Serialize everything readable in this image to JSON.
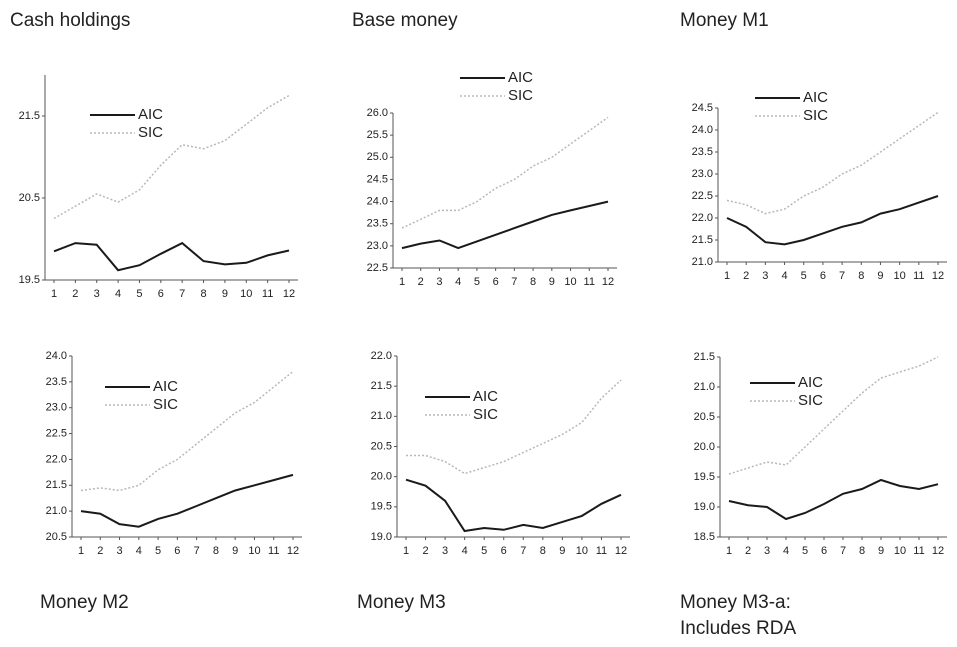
{
  "chart_data": [
    {
      "type": "line",
      "title": "Cash holdings",
      "categories": [
        "1",
        "2",
        "3",
        "4",
        "5",
        "6",
        "7",
        "8",
        "9",
        "10",
        "11",
        "12"
      ],
      "series": [
        {
          "name": "AIC",
          "color": "#1a1a1a",
          "values": [
            19.85,
            19.95,
            19.93,
            19.62,
            19.68,
            19.82,
            19.95,
            19.73,
            19.69,
            19.71,
            19.8,
            19.86
          ]
        },
        {
          "name": "SIC",
          "color": "#b8b8b8",
          "values": [
            20.25,
            20.4,
            20.55,
            20.45,
            20.6,
            20.9,
            21.15,
            21.1,
            21.2,
            21.4,
            21.6,
            21.75
          ]
        }
      ],
      "ylim": [
        19.5,
        22.0
      ],
      "yticks": [
        19.5,
        20.5,
        21.5
      ]
    },
    {
      "type": "line",
      "title": "Base money",
      "categories": [
        "1",
        "2",
        "3",
        "4",
        "5",
        "6",
        "7",
        "8",
        "9",
        "10",
        "11",
        "12"
      ],
      "series": [
        {
          "name": "AIC",
          "color": "#1a1a1a",
          "values": [
            22.95,
            23.05,
            23.12,
            22.95,
            23.1,
            23.25,
            23.4,
            23.55,
            23.7,
            23.8,
            23.9,
            24.0
          ]
        },
        {
          "name": "SIC",
          "color": "#b8b8b8",
          "values": [
            23.4,
            23.6,
            23.8,
            23.8,
            24.0,
            24.3,
            24.5,
            24.8,
            25.0,
            25.3,
            25.6,
            25.9
          ]
        }
      ],
      "ylim": [
        22.5,
        26.0
      ],
      "yticks": [
        22.5,
        {
          "value": 23,
          "label": "23.0"
        },
        23.5,
        {
          "value": 24,
          "label": "24.0"
        },
        24.5,
        {
          "value": 25,
          "label": "25.0"
        },
        25.5,
        {
          "value": 26,
          "label": "26.0"
        }
      ]
    },
    {
      "type": "line",
      "title": "Money M1",
      "categories": [
        "1",
        "2",
        "3",
        "4",
        "5",
        "6",
        "7",
        "8",
        "9",
        "10",
        "11",
        "12"
      ],
      "series": [
        {
          "name": "AIC",
          "color": "#1a1a1a",
          "values": [
            22.0,
            21.8,
            21.45,
            21.4,
            21.5,
            21.65,
            21.8,
            21.9,
            22.1,
            22.2,
            22.35,
            22.5
          ]
        },
        {
          "name": "SIC",
          "color": "#b8b8b8",
          "values": [
            22.4,
            22.3,
            22.1,
            22.2,
            22.5,
            22.7,
            23.0,
            23.2,
            23.5,
            23.8,
            24.1,
            24.4
          ]
        }
      ],
      "ylim": [
        21.0,
        24.5
      ],
      "yticks": [
        {
          "value": 21,
          "label": "21.0"
        },
        21.5,
        {
          "value": 22,
          "label": "22.0"
        },
        22.5,
        {
          "value": 23,
          "label": "23.0"
        },
        23.5,
        {
          "value": 24,
          "label": "24.0"
        },
        24.5
      ]
    },
    {
      "type": "line",
      "title": "Money M2",
      "categories": [
        "1",
        "2",
        "3",
        "4",
        "5",
        "6",
        "7",
        "8",
        "9",
        "10",
        "11",
        "12"
      ],
      "series": [
        {
          "name": "AIC",
          "color": "#1a1a1a",
          "values": [
            21.0,
            20.95,
            20.75,
            20.7,
            20.85,
            20.95,
            21.1,
            21.25,
            21.4,
            21.5,
            21.6,
            21.7
          ]
        },
        {
          "name": "SIC",
          "color": "#b8b8b8",
          "values": [
            21.4,
            21.45,
            21.4,
            21.5,
            21.8,
            22.0,
            22.3,
            22.6,
            22.9,
            23.1,
            23.4,
            23.7
          ]
        }
      ],
      "ylim": [
        20.5,
        24.0
      ],
      "yticks": [
        20.5,
        {
          "value": 21,
          "label": "21.0"
        },
        21.5,
        {
          "value": 22,
          "label": "22.0"
        },
        22.5,
        {
          "value": 23,
          "label": "23.0"
        },
        23.5,
        {
          "value": 24,
          "label": "24.0"
        }
      ]
    },
    {
      "type": "line",
      "title": "Money M3",
      "categories": [
        "1",
        "2",
        "3",
        "4",
        "5",
        "6",
        "7",
        "8",
        "9",
        "10",
        "11",
        "12"
      ],
      "series": [
        {
          "name": "AIC",
          "color": "#1a1a1a",
          "values": [
            19.95,
            19.85,
            19.6,
            19.1,
            19.15,
            19.12,
            19.2,
            19.15,
            19.25,
            19.35,
            19.55,
            19.7
          ]
        },
        {
          "name": "SIC",
          "color": "#b8b8b8",
          "values": [
            20.35,
            20.35,
            20.25,
            20.05,
            20.15,
            20.25,
            20.4,
            20.55,
            20.7,
            20.9,
            21.3,
            21.6
          ]
        }
      ],
      "ylim": [
        19.0,
        22.0
      ],
      "yticks": [
        {
          "value": 19,
          "label": "19.0"
        },
        19.5,
        {
          "value": 20,
          "label": "20.0"
        },
        20.5,
        {
          "value": 21,
          "label": "21.0"
        },
        21.5,
        {
          "value": 22,
          "label": "22.0"
        }
      ]
    },
    {
      "type": "line",
      "title": "Money M3-a: Includes RDA",
      "categories": [
        "1",
        "2",
        "3",
        "4",
        "5",
        "6",
        "7",
        "8",
        "9",
        "10",
        "11",
        "12"
      ],
      "series": [
        {
          "name": "AIC",
          "color": "#1a1a1a",
          "values": [
            19.1,
            19.03,
            19.0,
            18.8,
            18.9,
            19.05,
            19.22,
            19.3,
            19.45,
            19.35,
            19.3,
            19.38
          ]
        },
        {
          "name": "SIC",
          "color": "#b8b8b8",
          "values": [
            19.55,
            19.65,
            19.75,
            19.7,
            20.0,
            20.3,
            20.6,
            20.9,
            21.15,
            21.25,
            21.35,
            21.5
          ]
        }
      ],
      "ylim": [
        18.5,
        21.5
      ],
      "yticks": [
        18.5,
        {
          "value": 19,
          "label": "19.0"
        },
        19.5,
        {
          "value": 20,
          "label": "20.0"
        },
        20.5,
        {
          "value": 21,
          "label": "21.0"
        },
        21.5
      ]
    }
  ]
}
